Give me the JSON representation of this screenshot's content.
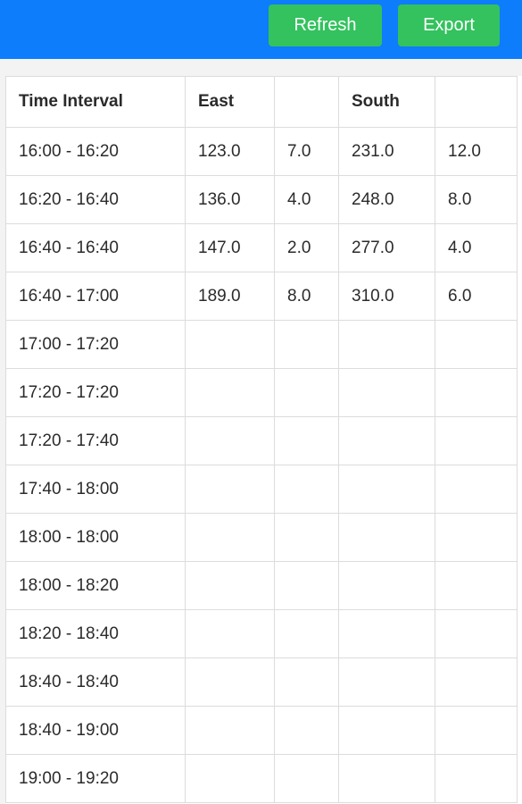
{
  "toolbar": {
    "refresh_label": "Refresh",
    "export_label": "Export"
  },
  "table": {
    "headers": [
      "Time Interval",
      "East",
      "",
      "South",
      ""
    ],
    "rows": [
      [
        "16:00 - 16:20",
        "123.0",
        "7.0",
        "231.0",
        "12.0"
      ],
      [
        "16:20 - 16:40",
        "136.0",
        "4.0",
        "248.0",
        "8.0"
      ],
      [
        "16:40 - 16:40",
        "147.0",
        "2.0",
        "277.0",
        "4.0"
      ],
      [
        "16:40 - 17:00",
        "189.0",
        "8.0",
        "310.0",
        "6.0"
      ],
      [
        "17:00 - 17:20",
        "",
        "",
        "",
        ""
      ],
      [
        "17:20 - 17:20",
        "",
        "",
        "",
        ""
      ],
      [
        "17:20 - 17:40",
        "",
        "",
        "",
        ""
      ],
      [
        "17:40 - 18:00",
        "",
        "",
        "",
        ""
      ],
      [
        "18:00 - 18:00",
        "",
        "",
        "",
        ""
      ],
      [
        "18:00 - 18:20",
        "",
        "",
        "",
        ""
      ],
      [
        "18:20 - 18:40",
        "",
        "",
        "",
        ""
      ],
      [
        "18:40 - 18:40",
        "",
        "",
        "",
        ""
      ],
      [
        "18:40 - 19:00",
        "",
        "",
        "",
        ""
      ],
      [
        "19:00 - 19:20",
        "",
        "",
        "",
        ""
      ]
    ]
  },
  "colors": {
    "header_bar": "#0d7dfb",
    "button": "#33c25e"
  }
}
